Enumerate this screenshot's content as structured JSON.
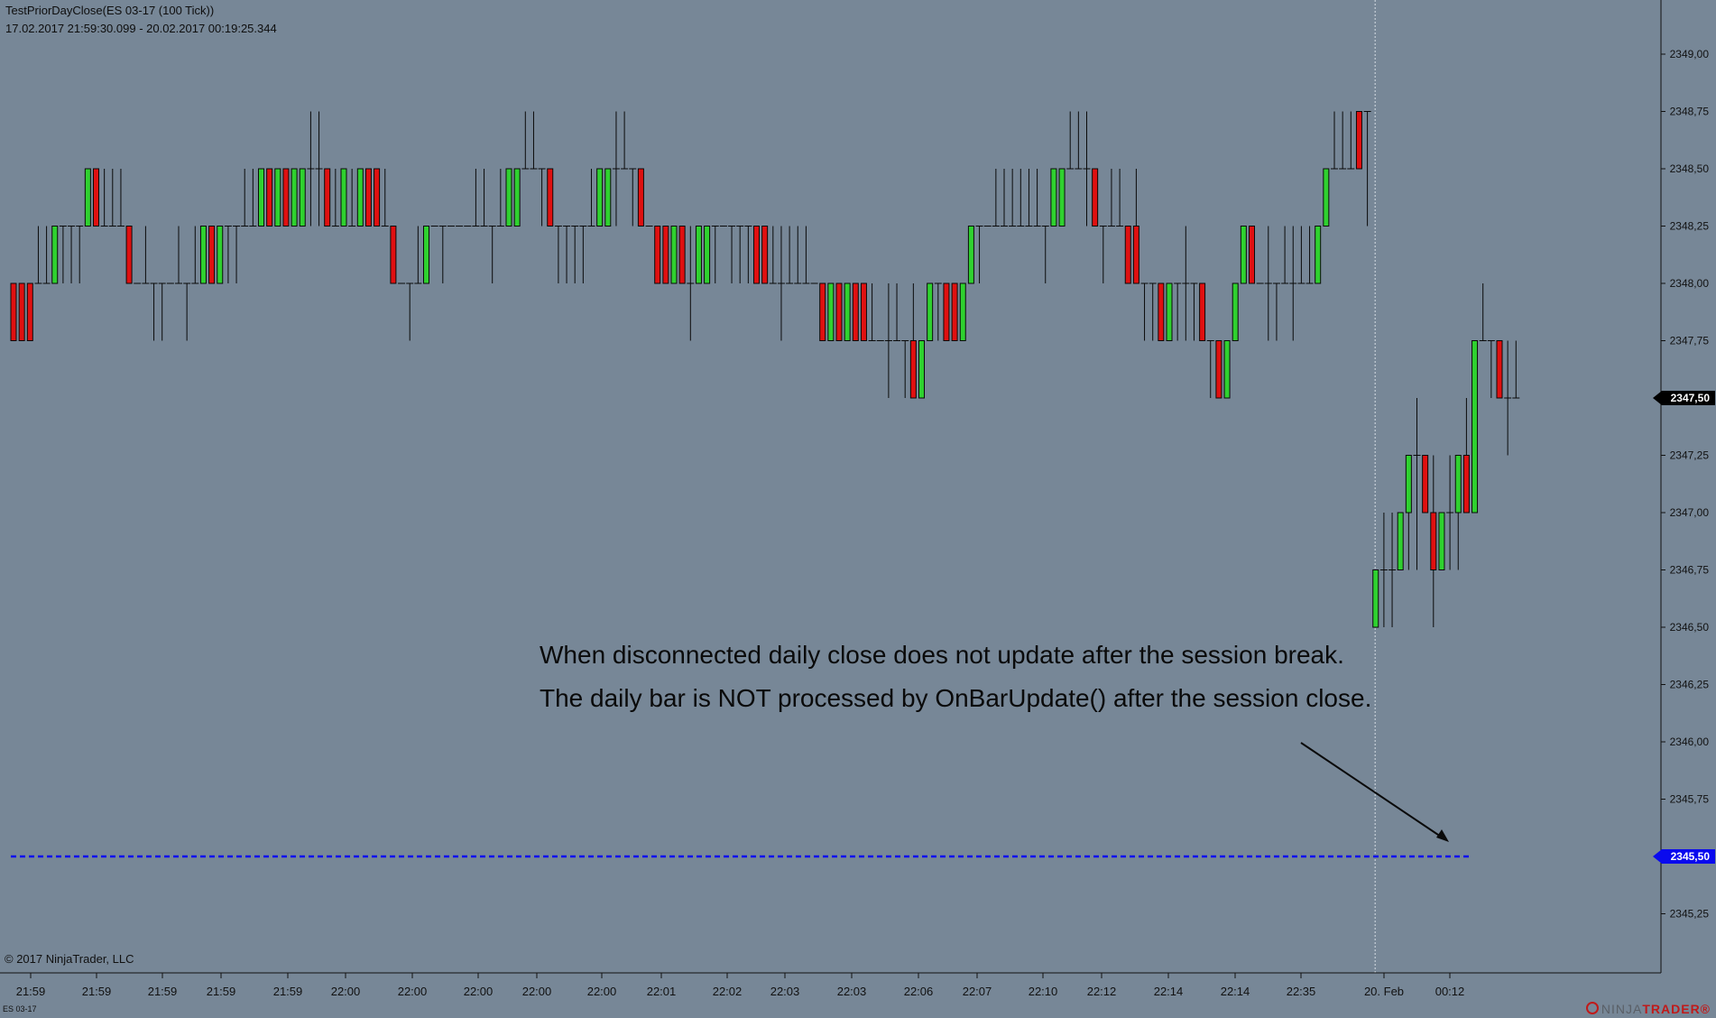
{
  "header": {
    "title": "TestPriorDayClose(ES 03-17 (100 Tick))",
    "range": "17.02.2017 21:59:30.099 - 20.02.2017 00:19:25.344"
  },
  "footer": {
    "copyright": "© 2017 NinjaTrader, LLC",
    "instrument": "ES 03-17",
    "brand_prefix": "NINJA",
    "brand_suffix": "TRADER®"
  },
  "annotations": {
    "line1": "When disconnected daily close does not update after the session break.",
    "line2": "The daily bar is NOT processed by OnBarUpdate() after the session close."
  },
  "colors": {
    "background": "#778797",
    "up_bar": "#2fd12f",
    "down_bar": "#e01010",
    "wick": "#0a0a0a",
    "prior_close_line": "#0a0aee",
    "marker_current": "#000000",
    "marker_prior_close": "#0a0aee"
  },
  "chart_data": {
    "type": "candlestick",
    "title": "TestPriorDayClose(ES 03-17 (100 Tick))",
    "ylim": [
      2345.125,
      2349.125
    ],
    "y_ticks": [
      "2349,00",
      "2348,75",
      "2348,50",
      "2348,25",
      "2348,00",
      "2347,75",
      "2347,50",
      "2347,25",
      "2347,00",
      "2346,75",
      "2346,50",
      "2346,25",
      "2346,00",
      "2345,75",
      "2345,50",
      "2345,25"
    ],
    "x_ticks": [
      "21:59",
      "21:59",
      "21:59",
      "21:59",
      "21:59",
      "22:00",
      "22:00",
      "22:00",
      "22:00",
      "22:00",
      "22:01",
      "22:02",
      "22:03",
      "22:03",
      "22:06",
      "22:07",
      "22:10",
      "22:12",
      "22:14",
      "22:14",
      "22:35",
      "20. Feb",
      "00:12"
    ],
    "current_price": {
      "label": "2347,50",
      "value": 2347.5
    },
    "prior_close": {
      "label": "2345,50",
      "value": 2345.5
    },
    "session_break_after_bar": 164,
    "bars": [
      [
        2348.0,
        2348.0,
        2347.75,
        2347.75
      ],
      [
        2348.0,
        2348.0,
        2347.75,
        2347.75
      ],
      [
        2348.0,
        2348.0,
        2347.75,
        2347.75
      ],
      [
        2348.0,
        2348.25,
        2348.0,
        2348.0
      ],
      [
        2348.0,
        2348.25,
        2348.0,
        2348.0
      ],
      [
        2348.0,
        2348.25,
        2348.0,
        2348.25
      ],
      [
        2348.25,
        2348.25,
        2348.0,
        2348.25
      ],
      [
        2348.25,
        2348.25,
        2348.0,
        2348.25
      ],
      [
        2348.25,
        2348.25,
        2348.0,
        2348.25
      ],
      [
        2348.25,
        2348.5,
        2348.25,
        2348.5
      ],
      [
        2348.5,
        2348.5,
        2348.25,
        2348.25
      ],
      [
        2348.25,
        2348.5,
        2348.25,
        2348.25
      ],
      [
        2348.25,
        2348.5,
        2348.25,
        2348.25
      ],
      [
        2348.25,
        2348.5,
        2348.25,
        2348.25
      ],
      [
        2348.25,
        2348.25,
        2348.0,
        2348.0
      ],
      [
        2348.0,
        2348.0,
        2348.0,
        2348.0
      ],
      [
        2348.0,
        2348.25,
        2348.0,
        2348.0
      ],
      [
        2348.0,
        2348.0,
        2347.75,
        2348.0
      ],
      [
        2348.0,
        2348.0,
        2347.75,
        2348.0
      ],
      [
        2348.0,
        2348.0,
        2348.0,
        2348.0
      ],
      [
        2348.0,
        2348.25,
        2348.0,
        2348.0
      ],
      [
        2348.0,
        2348.0,
        2347.75,
        2348.0
      ],
      [
        2348.0,
        2348.25,
        2348.0,
        2348.0
      ],
      [
        2348.0,
        2348.25,
        2348.0,
        2348.25
      ],
      [
        2348.25,
        2348.25,
        2348.0,
        2348.0
      ],
      [
        2348.0,
        2348.25,
        2348.0,
        2348.25
      ],
      [
        2348.25,
        2348.25,
        2348.0,
        2348.25
      ],
      [
        2348.25,
        2348.25,
        2348.0,
        2348.25
      ],
      [
        2348.25,
        2348.5,
        2348.25,
        2348.25
      ],
      [
        2348.25,
        2348.5,
        2348.25,
        2348.25
      ],
      [
        2348.25,
        2348.5,
        2348.25,
        2348.5
      ],
      [
        2348.5,
        2348.5,
        2348.25,
        2348.25
      ],
      [
        2348.25,
        2348.5,
        2348.25,
        2348.5
      ],
      [
        2348.5,
        2348.5,
        2348.25,
        2348.25
      ],
      [
        2348.25,
        2348.5,
        2348.25,
        2348.5
      ],
      [
        2348.25,
        2348.5,
        2348.25,
        2348.5
      ],
      [
        2348.5,
        2348.75,
        2348.25,
        2348.5
      ],
      [
        2348.5,
        2348.75,
        2348.25,
        2348.5
      ],
      [
        2348.5,
        2348.5,
        2348.25,
        2348.25
      ],
      [
        2348.25,
        2348.5,
        2348.25,
        2348.25
      ],
      [
        2348.25,
        2348.5,
        2348.25,
        2348.5
      ],
      [
        2348.25,
        2348.5,
        2348.25,
        2348.25
      ],
      [
        2348.25,
        2348.5,
        2348.25,
        2348.5
      ],
      [
        2348.5,
        2348.5,
        2348.25,
        2348.25
      ],
      [
        2348.5,
        2348.5,
        2348.25,
        2348.25
      ],
      [
        2348.25,
        2348.5,
        2348.25,
        2348.25
      ],
      [
        2348.25,
        2348.25,
        2348.0,
        2348.0
      ],
      [
        2348.0,
        2348.0,
        2348.0,
        2348.0
      ],
      [
        2348.0,
        2348.0,
        2347.75,
        2348.0
      ],
      [
        2348.0,
        2348.25,
        2348.0,
        2348.0
      ],
      [
        2348.0,
        2348.25,
        2348.0,
        2348.25
      ],
      [
        2348.25,
        2348.25,
        2348.25,
        2348.25
      ],
      [
        2348.25,
        2348.25,
        2348.0,
        2348.25
      ],
      [
        2348.25,
        2348.25,
        2348.25,
        2348.25
      ],
      [
        2348.25,
        2348.25,
        2348.25,
        2348.25
      ],
      [
        2348.25,
        2348.25,
        2348.25,
        2348.25
      ],
      [
        2348.25,
        2348.5,
        2348.25,
        2348.25
      ],
      [
        2348.25,
        2348.5,
        2348.25,
        2348.25
      ],
      [
        2348.25,
        2348.25,
        2348.0,
        2348.25
      ],
      [
        2348.25,
        2348.5,
        2348.25,
        2348.25
      ],
      [
        2348.25,
        2348.5,
        2348.25,
        2348.5
      ],
      [
        2348.25,
        2348.5,
        2348.25,
        2348.5
      ],
      [
        2348.5,
        2348.75,
        2348.5,
        2348.5
      ],
      [
        2348.5,
        2348.75,
        2348.5,
        2348.5
      ],
      [
        2348.5,
        2348.5,
        2348.25,
        2348.5
      ],
      [
        2348.5,
        2348.5,
        2348.25,
        2348.25
      ],
      [
        2348.25,
        2348.25,
        2348.0,
        2348.25
      ],
      [
        2348.25,
        2348.25,
        2348.0,
        2348.25
      ],
      [
        2348.25,
        2348.25,
        2348.0,
        2348.25
      ],
      [
        2348.25,
        2348.25,
        2348.0,
        2348.25
      ],
      [
        2348.25,
        2348.5,
        2348.25,
        2348.25
      ],
      [
        2348.25,
        2348.5,
        2348.25,
        2348.5
      ],
      [
        2348.25,
        2348.5,
        2348.25,
        2348.5
      ],
      [
        2348.5,
        2348.75,
        2348.25,
        2348.5
      ],
      [
        2348.5,
        2348.75,
        2348.5,
        2348.5
      ],
      [
        2348.5,
        2348.5,
        2348.25,
        2348.5
      ],
      [
        2348.5,
        2348.5,
        2348.25,
        2348.25
      ],
      [
        2348.25,
        2348.25,
        2348.25,
        2348.25
      ],
      [
        2348.25,
        2348.25,
        2348.0,
        2348.0
      ],
      [
        2348.25,
        2348.25,
        2348.0,
        2348.0
      ],
      [
        2348.0,
        2348.25,
        2348.0,
        2348.25
      ],
      [
        2348.25,
        2348.25,
        2348.0,
        2348.0
      ],
      [
        2348.0,
        2348.25,
        2347.75,
        2348.0
      ],
      [
        2348.0,
        2348.25,
        2348.0,
        2348.25
      ],
      [
        2348.0,
        2348.25,
        2348.0,
        2348.25
      ],
      [
        2348.25,
        2348.25,
        2348.0,
        2348.25
      ],
      [
        2348.25,
        2348.25,
        2348.25,
        2348.25
      ],
      [
        2348.25,
        2348.25,
        2348.0,
        2348.25
      ],
      [
        2348.25,
        2348.25,
        2348.0,
        2348.25
      ],
      [
        2348.25,
        2348.25,
        2348.0,
        2348.25
      ],
      [
        2348.25,
        2348.25,
        2348.0,
        2348.0
      ],
      [
        2348.25,
        2348.25,
        2348.0,
        2348.0
      ],
      [
        2348.0,
        2348.25,
        2348.0,
        2348.0
      ],
      [
        2348.0,
        2348.25,
        2347.75,
        2348.0
      ],
      [
        2348.0,
        2348.25,
        2348.0,
        2348.0
      ],
      [
        2348.0,
        2348.25,
        2348.0,
        2348.0
      ],
      [
        2348.0,
        2348.25,
        2348.0,
        2348.0
      ],
      [
        2348.0,
        2348.0,
        2348.0,
        2348.0
      ],
      [
        2348.0,
        2348.0,
        2347.75,
        2347.75
      ],
      [
        2347.75,
        2348.0,
        2347.75,
        2348.0
      ],
      [
        2348.0,
        2348.0,
        2347.75,
        2347.75
      ],
      [
        2347.75,
        2348.0,
        2347.75,
        2348.0
      ],
      [
        2348.0,
        2348.0,
        2347.75,
        2347.75
      ],
      [
        2348.0,
        2348.0,
        2347.75,
        2347.75
      ],
      [
        2347.75,
        2348.0,
        2347.75,
        2347.75
      ],
      [
        2347.75,
        2347.75,
        2347.75,
        2347.75
      ],
      [
        2347.75,
        2348.0,
        2347.5,
        2347.75
      ],
      [
        2347.75,
        2348.0,
        2347.75,
        2347.75
      ],
      [
        2347.75,
        2347.75,
        2347.5,
        2347.75
      ],
      [
        2347.75,
        2348.0,
        2347.5,
        2347.5
      ],
      [
        2347.5,
        2347.75,
        2347.5,
        2347.75
      ],
      [
        2347.75,
        2348.0,
        2347.75,
        2348.0
      ],
      [
        2348.0,
        2348.0,
        2347.75,
        2348.0
      ],
      [
        2348.0,
        2348.0,
        2347.75,
        2347.75
      ],
      [
        2348.0,
        2348.0,
        2347.75,
        2347.75
      ],
      [
        2347.75,
        2348.0,
        2347.75,
        2348.0
      ],
      [
        2348.0,
        2348.25,
        2348.0,
        2348.25
      ],
      [
        2348.25,
        2348.25,
        2348.0,
        2348.25
      ],
      [
        2348.25,
        2348.25,
        2348.25,
        2348.25
      ],
      [
        2348.25,
        2348.5,
        2348.25,
        2348.25
      ],
      [
        2348.25,
        2348.5,
        2348.25,
        2348.25
      ],
      [
        2348.25,
        2348.5,
        2348.25,
        2348.25
      ],
      [
        2348.25,
        2348.5,
        2348.25,
        2348.25
      ],
      [
        2348.25,
        2348.5,
        2348.25,
        2348.25
      ],
      [
        2348.25,
        2348.5,
        2348.25,
        2348.25
      ],
      [
        2348.25,
        2348.25,
        2348.0,
        2348.25
      ],
      [
        2348.25,
        2348.5,
        2348.25,
        2348.5
      ],
      [
        2348.25,
        2348.5,
        2348.25,
        2348.5
      ],
      [
        2348.5,
        2348.75,
        2348.5,
        2348.5
      ],
      [
        2348.5,
        2348.75,
        2348.5,
        2348.5
      ],
      [
        2348.5,
        2348.75,
        2348.25,
        2348.5
      ],
      [
        2348.5,
        2348.5,
        2348.25,
        2348.25
      ],
      [
        2348.25,
        2348.25,
        2348.0,
        2348.25
      ],
      [
        2348.25,
        2348.5,
        2348.25,
        2348.25
      ],
      [
        2348.25,
        2348.5,
        2348.25,
        2348.25
      ],
      [
        2348.25,
        2348.25,
        2348.0,
        2348.0
      ],
      [
        2348.25,
        2348.5,
        2348.0,
        2348.0
      ],
      [
        2348.0,
        2348.0,
        2347.75,
        2348.0
      ],
      [
        2348.0,
        2348.0,
        2347.75,
        2348.0
      ],
      [
        2348.0,
        2348.0,
        2347.75,
        2347.75
      ],
      [
        2347.75,
        2348.0,
        2347.75,
        2348.0
      ],
      [
        2348.0,
        2348.0,
        2347.75,
        2348.0
      ],
      [
        2348.0,
        2348.25,
        2347.75,
        2348.0
      ],
      [
        2348.0,
        2348.0,
        2347.75,
        2348.0
      ],
      [
        2348.0,
        2348.0,
        2347.75,
        2347.75
      ],
      [
        2347.75,
        2347.75,
        2347.5,
        2347.75
      ],
      [
        2347.75,
        2347.75,
        2347.5,
        2347.5
      ],
      [
        2347.5,
        2347.75,
        2347.5,
        2347.75
      ],
      [
        2347.75,
        2348.0,
        2347.75,
        2348.0
      ],
      [
        2348.0,
        2348.25,
        2348.0,
        2348.25
      ],
      [
        2348.25,
        2348.25,
        2348.0,
        2348.0
      ],
      [
        2348.0,
        2348.0,
        2348.0,
        2348.0
      ],
      [
        2348.0,
        2348.25,
        2347.75,
        2348.0
      ],
      [
        2348.0,
        2348.0,
        2347.75,
        2348.0
      ],
      [
        2348.0,
        2348.25,
        2348.0,
        2348.0
      ],
      [
        2348.0,
        2348.25,
        2347.75,
        2348.0
      ],
      [
        2348.0,
        2348.25,
        2348.0,
        2348.0
      ],
      [
        2348.0,
        2348.25,
        2348.0,
        2348.0
      ],
      [
        2348.0,
        2348.25,
        2348.0,
        2348.25
      ],
      [
        2348.25,
        2348.5,
        2348.25,
        2348.5
      ],
      [
        2348.5,
        2348.75,
        2348.5,
        2348.5
      ],
      [
        2348.5,
        2348.75,
        2348.5,
        2348.5
      ],
      [
        2348.5,
        2348.75,
        2348.5,
        2348.5
      ],
      [
        2348.75,
        2348.75,
        2348.5,
        2348.5
      ],
      [
        2348.75,
        2348.75,
        2348.25,
        2348.75
      ],
      [
        2346.5,
        2346.75,
        2346.5,
        2346.75
      ],
      [
        2346.75,
        2347.0,
        2346.5,
        2346.75
      ],
      [
        2346.75,
        2347.0,
        2346.5,
        2346.75
      ],
      [
        2346.75,
        2347.0,
        2346.75,
        2347.0
      ],
      [
        2347.0,
        2347.25,
        2346.75,
        2347.25
      ],
      [
        2347.25,
        2347.5,
        2346.75,
        2347.25
      ],
      [
        2347.25,
        2347.25,
        2347.0,
        2347.0
      ],
      [
        2347.0,
        2347.25,
        2346.5,
        2346.75
      ],
      [
        2346.75,
        2347.0,
        2346.75,
        2347.0
      ],
      [
        2347.0,
        2347.25,
        2346.75,
        2347.0
      ],
      [
        2347.0,
        2347.25,
        2346.75,
        2347.25
      ],
      [
        2347.25,
        2347.5,
        2347.0,
        2347.0
      ],
      [
        2347.0,
        2347.75,
        2347.0,
        2347.75
      ],
      [
        2347.75,
        2348.0,
        2347.75,
        2347.75
      ],
      [
        2347.75,
        2347.75,
        2347.5,
        2347.75
      ],
      [
        2347.75,
        2347.75,
        2347.5,
        2347.5
      ],
      [
        2347.5,
        2347.75,
        2347.25,
        2347.5
      ],
      [
        2347.5,
        2347.75,
        2347.5,
        2347.5
      ]
    ]
  }
}
